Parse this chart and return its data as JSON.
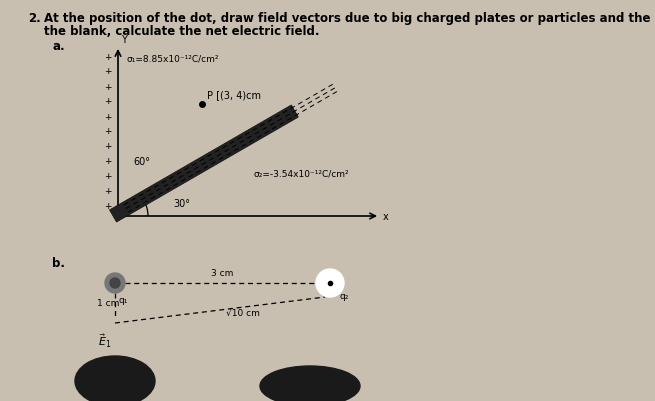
{
  "bg_color": "#c8bfb0",
  "title_num": "2.",
  "title_text": "At the position of the dot, draw field vectors due to big charged plates or particles and the net field. In\nthe blank, calculate the net electric field.",
  "title_fontsize": 8.5,
  "part_a_label": "a.",
  "part_b_label": "b.",
  "sigma1_label": "σ₁=8.85x10⁻¹²C/cm²",
  "sigma2_label": "σ₂=-3.54x10⁻¹²C/cm²",
  "point_label": "P [(3, 4)cm",
  "q1_label": "q₁",
  "q2_label": "q₂",
  "E_label": "ẖ₁",
  "dist_3cm": "3 cm",
  "dist_1cm": "1 cm",
  "dist_sqrt10": "√10 cm",
  "angle_30_label": "30°",
  "angle_60_label": "60°"
}
